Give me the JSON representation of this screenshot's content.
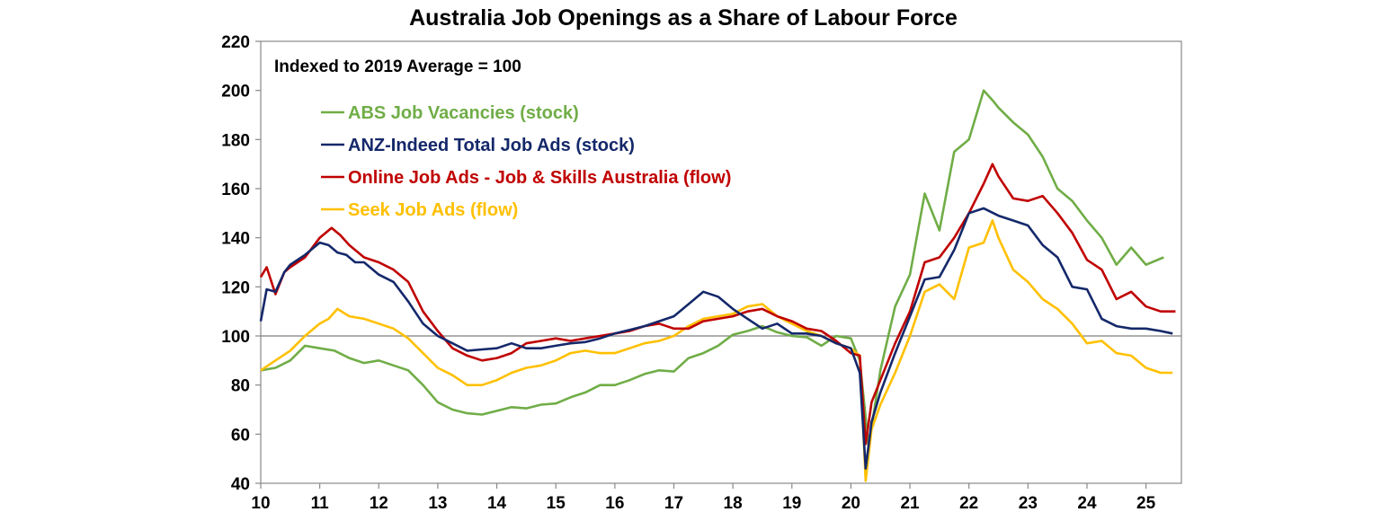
{
  "chart_data": {
    "type": "line",
    "title": "Australia Job Openings as a Share of Labour Force",
    "annotation": "Indexed to 2019 Average = 100",
    "xlabel": "",
    "ylabel": "",
    "xlim": [
      2010,
      2025.6
    ],
    "ylim": [
      40,
      220
    ],
    "yticks": [
      40,
      60,
      80,
      100,
      120,
      140,
      160,
      180,
      200,
      220
    ],
    "xticks": [
      10,
      11,
      12,
      13,
      14,
      15,
      16,
      17,
      18,
      19,
      20,
      21,
      22,
      23,
      24,
      25
    ],
    "reference_line": 100,
    "grid": false,
    "legend_position": "top-left",
    "series": [
      {
        "name": "ABS Job Vacancies (stock)",
        "color": "#70AD47",
        "x": [
          2010.0,
          2010.25,
          2010.5,
          2010.75,
          2011.0,
          2011.25,
          2011.5,
          2011.75,
          2012.0,
          2012.25,
          2012.5,
          2012.75,
          2013.0,
          2013.25,
          2013.5,
          2013.75,
          2014.0,
          2014.25,
          2014.5,
          2014.75,
          2015.0,
          2015.25,
          2015.5,
          2015.75,
          2016.0,
          2016.25,
          2016.5,
          2016.75,
          2017.0,
          2017.25,
          2017.5,
          2017.75,
          2018.0,
          2018.25,
          2018.5,
          2018.75,
          2019.0,
          2019.25,
          2019.5,
          2019.75,
          2020.0,
          2020.15,
          2020.3,
          2020.5,
          2020.75,
          2021.0,
          2021.25,
          2021.5,
          2021.75,
          2022.0,
          2022.25,
          2022.4,
          2022.5,
          2022.75,
          2023.0,
          2023.25,
          2023.5,
          2023.75,
          2024.0,
          2024.25,
          2024.5,
          2024.75,
          2025.0,
          2025.3
        ],
        "values": [
          86,
          87,
          90,
          96,
          95,
          94,
          91,
          89,
          90,
          88,
          86,
          80,
          73,
          70,
          68.5,
          68,
          69.5,
          71,
          70.5,
          72,
          72.5,
          75,
          77,
          80,
          80,
          82,
          84.5,
          86,
          85.5,
          91,
          93,
          96,
          100.5,
          102,
          104,
          101.5,
          100,
          99.5,
          96,
          100,
          99,
          90,
          55,
          86,
          112,
          125,
          158,
          143,
          175,
          180,
          200,
          196,
          193,
          187,
          182,
          173,
          160,
          155,
          147,
          140,
          129,
          136,
          129,
          132
        ]
      },
      {
        "name": "ANZ-Indeed Total Job Ads (stock)",
        "color": "#14286A",
        "x": [
          2010.0,
          2010.1,
          2010.25,
          2010.4,
          2010.5,
          2010.75,
          2011.0,
          2011.15,
          2011.3,
          2011.45,
          2011.6,
          2011.75,
          2012.0,
          2012.25,
          2012.5,
          2012.75,
          2013.0,
          2013.25,
          2013.5,
          2013.75,
          2014.0,
          2014.25,
          2014.5,
          2014.75,
          2015.0,
          2015.25,
          2015.5,
          2015.75,
          2016.0,
          2016.25,
          2016.5,
          2016.75,
          2017.0,
          2017.25,
          2017.5,
          2017.75,
          2018.0,
          2018.25,
          2018.5,
          2018.75,
          2019.0,
          2019.25,
          2019.5,
          2019.75,
          2020.0,
          2020.15,
          2020.25,
          2020.35,
          2020.5,
          2020.75,
          2021.0,
          2021.25,
          2021.5,
          2021.75,
          2022.0,
          2022.25,
          2022.5,
          2022.75,
          2023.0,
          2023.25,
          2023.5,
          2023.75,
          2024.0,
          2024.25,
          2024.5,
          2024.75,
          2025.0,
          2025.25,
          2025.45
        ],
        "values": [
          106,
          119,
          118,
          126,
          129,
          133,
          138,
          137,
          134,
          133,
          130,
          130,
          125,
          122,
          114,
          105,
          100,
          97,
          94,
          94.5,
          95,
          97,
          95,
          95,
          96,
          97,
          97.5,
          99,
          101,
          102.5,
          104,
          106,
          108,
          113,
          118,
          116,
          111,
          107,
          103,
          105,
          101,
          101,
          100,
          97,
          95,
          85,
          46,
          65,
          77,
          93,
          108,
          123,
          124,
          135,
          150,
          152,
          149,
          147,
          145,
          137,
          132,
          120,
          119,
          107,
          104,
          103,
          103,
          102,
          101
        ]
      },
      {
        "name": "Online Job Ads - Job & Skills Australia (flow)",
        "color": "#C00000",
        "x": [
          2010.0,
          2010.1,
          2010.25,
          2010.4,
          2010.5,
          2010.75,
          2011.0,
          2011.2,
          2011.35,
          2011.5,
          2011.75,
          2012.0,
          2012.25,
          2012.5,
          2012.75,
          2013.0,
          2013.25,
          2013.5,
          2013.75,
          2014.0,
          2014.25,
          2014.5,
          2014.75,
          2015.0,
          2015.25,
          2015.5,
          2015.75,
          2016.0,
          2016.25,
          2016.5,
          2016.75,
          2017.0,
          2017.25,
          2017.5,
          2017.75,
          2018.0,
          2018.25,
          2018.5,
          2018.75,
          2019.0,
          2019.25,
          2019.5,
          2019.75,
          2020.0,
          2020.15,
          2020.25,
          2020.35,
          2020.5,
          2020.75,
          2021.0,
          2021.25,
          2021.5,
          2021.75,
          2022.0,
          2022.25,
          2022.4,
          2022.5,
          2022.75,
          2023.0,
          2023.25,
          2023.5,
          2023.75,
          2024.0,
          2024.25,
          2024.5,
          2024.75,
          2025.0,
          2025.25,
          2025.5
        ],
        "values": [
          124,
          128,
          117,
          126,
          128,
          132,
          140,
          144,
          141,
          137,
          132,
          130,
          127,
          122,
          110,
          102,
          95,
          92,
          90,
          91,
          93,
          97,
          98,
          99,
          98,
          99,
          100,
          101,
          102,
          104,
          105,
          103,
          103,
          106,
          107,
          108,
          110,
          111,
          108,
          106,
          103,
          102,
          98,
          93,
          92,
          56,
          73,
          82,
          97,
          110,
          130,
          132,
          140,
          150,
          162,
          170,
          165,
          156,
          155,
          157,
          150,
          142,
          131,
          127,
          115,
          118,
          112,
          110,
          110
        ]
      },
      {
        "name": "Seek Job Ads (flow)",
        "color": "#FFC000",
        "x": [
          2010.0,
          2010.25,
          2010.5,
          2010.75,
          2011.0,
          2011.15,
          2011.3,
          2011.5,
          2011.75,
          2012.0,
          2012.25,
          2012.5,
          2012.75,
          2013.0,
          2013.25,
          2013.5,
          2013.75,
          2014.0,
          2014.25,
          2014.5,
          2014.75,
          2015.0,
          2015.25,
          2015.5,
          2015.75,
          2016.0,
          2016.25,
          2016.5,
          2016.75,
          2017.0,
          2017.25,
          2017.5,
          2017.75,
          2018.0,
          2018.25,
          2018.5,
          2018.75,
          2019.0,
          2019.25,
          2019.5,
          2019.75,
          2020.0,
          2020.15,
          2020.25,
          2020.35,
          2020.5,
          2020.75,
          2021.0,
          2021.25,
          2021.5,
          2021.75,
          2022.0,
          2022.25,
          2022.4,
          2022.5,
          2022.75,
          2023.0,
          2023.25,
          2023.5,
          2023.75,
          2024.0,
          2024.25,
          2024.5,
          2024.75,
          2025.0,
          2025.25,
          2025.45
        ],
        "values": [
          86,
          90,
          94,
          100,
          105,
          107,
          111,
          108,
          107,
          105,
          103,
          99,
          93,
          87,
          84,
          80,
          80,
          82,
          85,
          87,
          88,
          90,
          93,
          94,
          93,
          93,
          95,
          97,
          98,
          100,
          104,
          107,
          108,
          109,
          112,
          113,
          108,
          105,
          102,
          100,
          97,
          95,
          92,
          41,
          62,
          72,
          85,
          100,
          118,
          121,
          115,
          136,
          138,
          147,
          140,
          127,
          122,
          115,
          111,
          105,
          97,
          98,
          93,
          92,
          87,
          85,
          85
        ]
      }
    ]
  }
}
